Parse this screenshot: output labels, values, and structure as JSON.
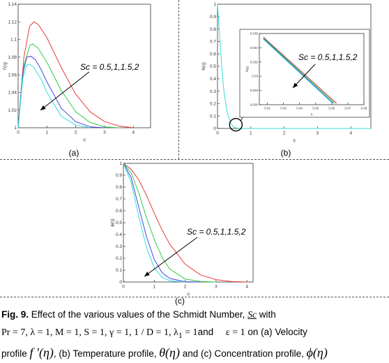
{
  "panels": [
    {
      "id": "a",
      "label": "(a)",
      "chart_data": {
        "type": "line",
        "xlabel": "η",
        "ylabel": "f'(η)",
        "xlim": [
          0,
          4.6
        ],
        "ylim": [
          1,
          1.14
        ],
        "xticks": [
          0,
          1,
          2,
          3,
          4
        ],
        "yticks": [
          1,
          1.02,
          1.04,
          1.06,
          1.08,
          1.1,
          1.12,
          1.14
        ],
        "annotation": "Sc = 0.5,1,1.5,2",
        "series": [
          {
            "color": "#e8393a",
            "x": [
              0,
              0.2,
              0.4,
              0.55,
              0.7,
              1,
              1.5,
              2,
              2.5,
              3,
              3.5,
              4
            ],
            "y": [
              1,
              1.08,
              1.115,
              1.12,
              1.117,
              1.102,
              1.068,
              1.038,
              1.018,
              1.007,
              1.002,
              1.0
            ]
          },
          {
            "color": "#33cc44",
            "x": [
              0,
              0.2,
              0.4,
              0.5,
              0.7,
              1,
              1.5,
              2,
              2.5,
              3,
              3.5
            ],
            "y": [
              1,
              1.07,
              1.093,
              1.095,
              1.09,
              1.074,
              1.042,
              1.018,
              1.006,
              1.001,
              1.0
            ]
          },
          {
            "color": "#4444dd",
            "x": [
              0,
              0.15,
              0.3,
              0.45,
              0.6,
              0.8,
              1,
              1.5,
              2,
              2.5,
              3
            ],
            "y": [
              1,
              1.06,
              1.08,
              1.081,
              1.077,
              1.066,
              1.052,
              1.022,
              1.007,
              1.001,
              1.0
            ]
          },
          {
            "color": "#33dddd",
            "x": [
              0,
              0.15,
              0.3,
              0.4,
              0.55,
              0.8,
              1,
              1.5,
              2,
              2.5
            ],
            "y": [
              1,
              1.055,
              1.071,
              1.072,
              1.068,
              1.055,
              1.04,
              1.013,
              1.003,
              1.0
            ]
          }
        ]
      }
    },
    {
      "id": "b",
      "label": "(b)",
      "chart_data": {
        "type": "line",
        "xlabel": "η",
        "ylabel": "θ(η)",
        "xlim": [
          0,
          4.6
        ],
        "ylim": [
          0,
          1
        ],
        "xticks": [
          0,
          1,
          2,
          3,
          4
        ],
        "yticks": [
          0,
          0.1,
          0.2,
          0.3,
          0.4,
          0.5,
          0.6,
          0.7,
          0.8,
          0.9,
          1
        ],
        "annotation": "Sc = 0.5,1,1.5,2",
        "series": [
          {
            "color": "#33dddd",
            "x": [
              0,
              0.05,
              0.1,
              0.15,
              0.2,
              0.3,
              0.4,
              0.5,
              0.6,
              0.8,
              1,
              4.6
            ],
            "y": [
              1,
              0.8,
              0.6,
              0.42,
              0.28,
              0.12,
              0.04,
              0.01,
              0.002,
              0,
              0,
              0
            ]
          }
        ],
        "inset": {
          "xlabel": "η",
          "ylabel": "θ(η)",
          "xlim": [
            0.515,
            0.58
          ],
          "ylim": [
            0.026,
            0.036
          ],
          "xticks": [
            0.52,
            0.53,
            0.54,
            0.55,
            0.56,
            0.57,
            0.58
          ],
          "yticks": [
            0.026,
            0.028,
            0.03,
            0.032,
            0.034,
            0.036
          ],
          "series": [
            {
              "color": "#e8393a",
              "x": [
                0.5175,
                0.563
              ],
              "y": [
                0.0355,
                0.0262
              ]
            },
            {
              "color": "#33cc44",
              "x": [
                0.5175,
                0.562
              ],
              "y": [
                0.0354,
                0.0262
              ]
            },
            {
              "color": "#4444dd",
              "x": [
                0.5175,
                0.561
              ],
              "y": [
                0.0353,
                0.0262
              ]
            },
            {
              "color": "#33dddd",
              "x": [
                0.5175,
                0.5605
              ],
              "y": [
                0.0352,
                0.0262
              ]
            }
          ]
        }
      }
    },
    {
      "id": "c",
      "label": "(c)",
      "chart_data": {
        "type": "line",
        "xlabel": "η",
        "ylabel": "ϕ(η)",
        "xlim": [
          0,
          4.2
        ],
        "ylim": [
          0,
          1
        ],
        "xticks": [
          0,
          1,
          2,
          3,
          4
        ],
        "yticks": [
          0,
          0.1,
          0.2,
          0.3,
          0.4,
          0.5,
          0.6,
          0.7,
          0.8,
          0.9,
          1
        ],
        "annotation": "Sc = 0.5,1,1.5,2",
        "series": [
          {
            "color": "#e8393a",
            "x": [
              0,
              0.25,
              0.5,
              0.75,
              1,
              1.25,
              1.5,
              2,
              2.5,
              3,
              3.5,
              4
            ],
            "y": [
              1,
              0.95,
              0.86,
              0.73,
              0.58,
              0.44,
              0.32,
              0.15,
              0.06,
              0.02,
              0.005,
              0
            ]
          },
          {
            "color": "#33cc44",
            "x": [
              0,
              0.25,
              0.5,
              0.75,
              1,
              1.25,
              1.5,
              2,
              2.5,
              3
            ],
            "y": [
              1,
              0.92,
              0.75,
              0.54,
              0.36,
              0.21,
              0.11,
              0.025,
              0.004,
              0
            ]
          },
          {
            "color": "#4444dd",
            "x": [
              0,
              0.25,
              0.5,
              0.75,
              1,
              1.25,
              1.5,
              2,
              2.5
            ],
            "y": [
              1,
              0.88,
              0.63,
              0.38,
              0.19,
              0.08,
              0.03,
              0.003,
              0
            ]
          },
          {
            "color": "#33dddd",
            "x": [
              0,
              0.25,
              0.5,
              0.75,
              1,
              1.25,
              1.5,
              2
            ],
            "y": [
              1,
              0.84,
              0.55,
              0.29,
              0.12,
              0.04,
              0.01,
              0
            ]
          }
        ]
      }
    }
  ],
  "caption": {
    "fig": "Fig. 9.",
    "t1": " Effect of the various values of the Schmidt Number,",
    "sc": "Sc",
    "t2": " with",
    "params": "Pr = 7, λ = 1, M = 1, S = 1,      γ = 1, 1 / D = 1, λ",
    "params_sub": "1",
    "params2": " = 1",
    "and": "and",
    "eps": "ε = 1",
    "on": " on  (a)  Velocity",
    "profile1": "profile ",
    "fprime": "f ′(η)",
    "t3": ", (b) Temperature profile, ",
    "theta": "θ(η)",
    "t4": " and (c) Concentration profile, ",
    "phi": "ϕ(η)"
  }
}
